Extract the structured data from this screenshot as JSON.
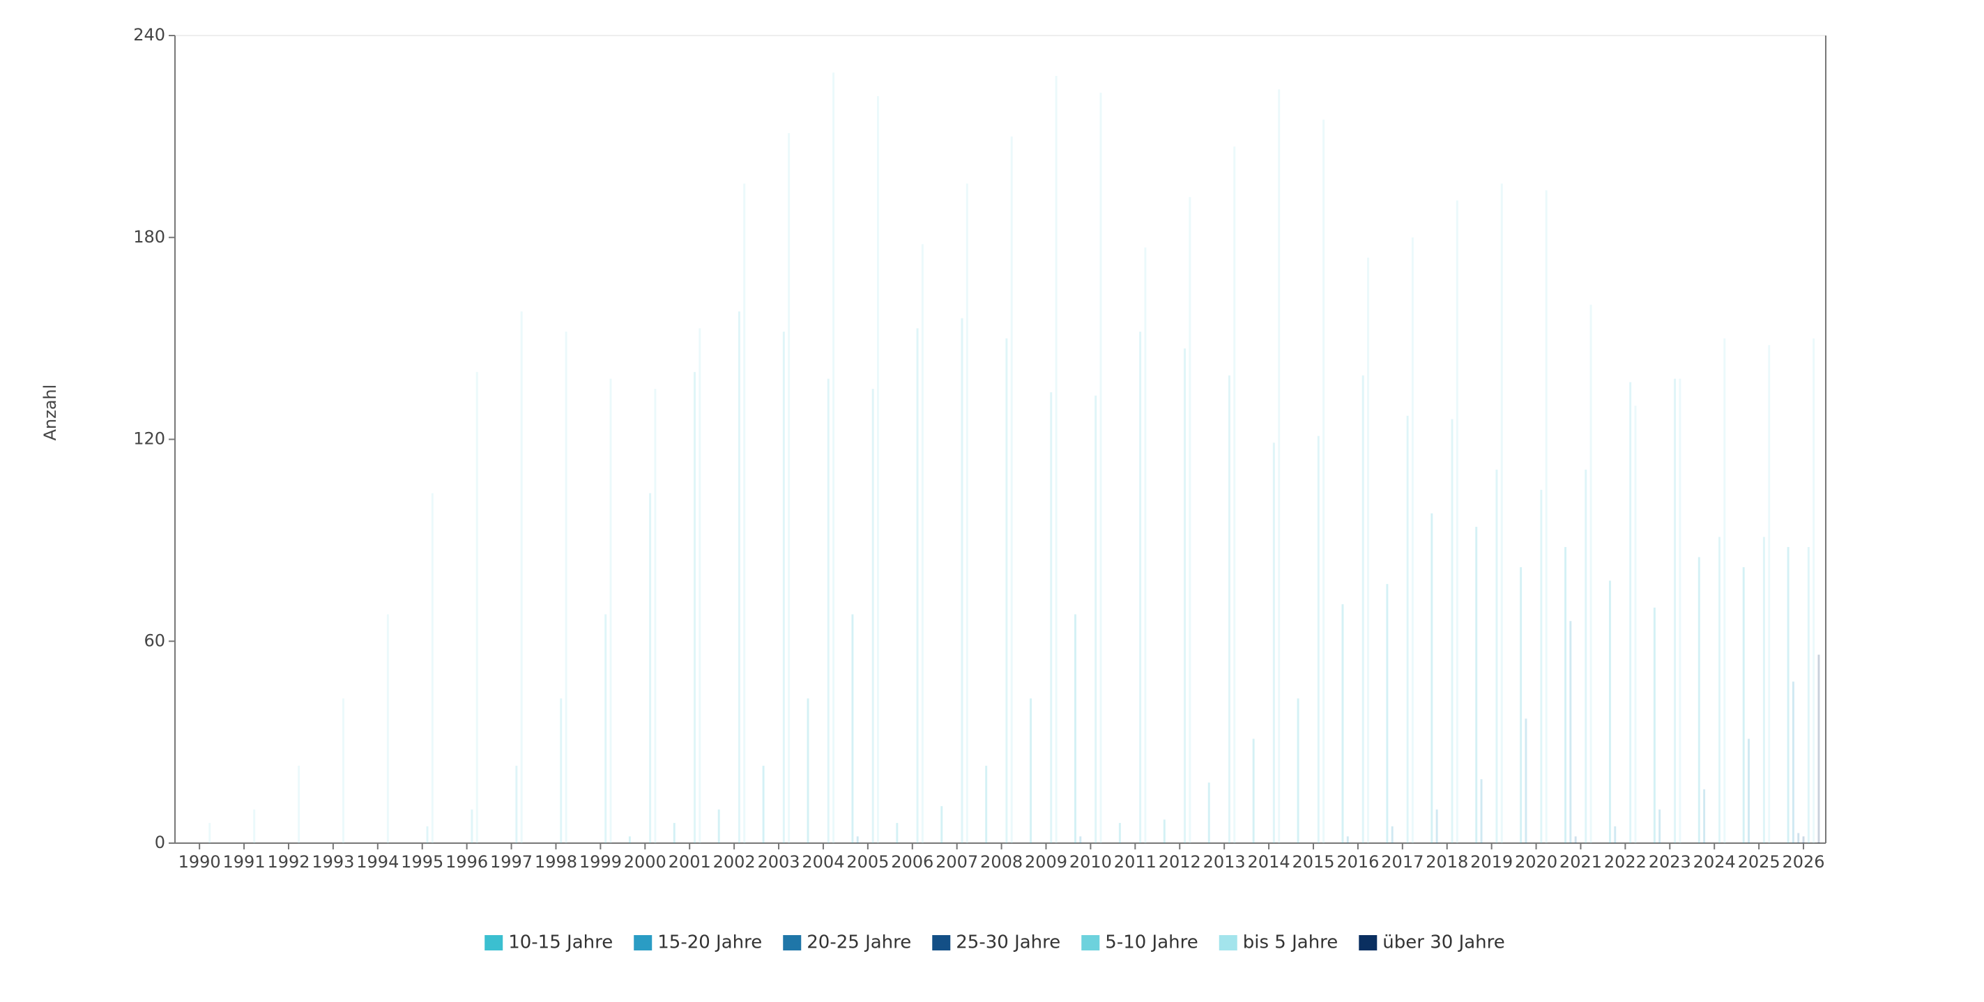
{
  "chart_data": {
    "type": "bar",
    "y_label": "Anzahl",
    "categories": [
      "1990",
      "1991",
      "1992",
      "1993",
      "1994",
      "1995",
      "1996",
      "1997",
      "1998",
      "1999",
      "2000",
      "2001",
      "2002",
      "2003",
      "2004",
      "2005",
      "2006",
      "2007",
      "2008",
      "2009",
      "2010",
      "2011",
      "2012",
      "2013",
      "2014",
      "2015",
      "2016",
      "2017",
      "2018",
      "2019",
      "2020",
      "2021",
      "2022",
      "2023",
      "2024",
      "2025",
      "2026"
    ],
    "series": [
      {
        "name": "10-15 Jahre",
        "color": "#3bbfd0",
        "values": [
          0,
          0,
          0,
          0,
          0,
          0,
          0,
          0,
          0,
          0,
          2,
          6,
          10,
          23,
          43,
          68,
          6,
          11,
          23,
          43,
          68,
          6,
          7,
          18,
          31,
          43,
          71,
          77,
          98,
          94,
          82,
          88,
          78,
          70,
          85,
          82,
          88
        ]
      },
      {
        "name": "15-20 Jahre",
        "color": "#2a9cc4",
        "values": [
          0,
          0,
          0,
          0,
          0,
          0,
          0,
          0,
          0,
          0,
          0,
          0,
          0,
          0,
          0,
          2,
          0,
          0,
          0,
          0,
          2,
          0,
          0,
          0,
          0,
          0,
          2,
          5,
          10,
          19,
          37,
          66,
          5,
          10,
          16,
          31,
          48
        ]
      },
      {
        "name": "20-25 Jahre",
        "color": "#1f76a8",
        "values": [
          0,
          0,
          0,
          0,
          0,
          0,
          0,
          0,
          0,
          0,
          0,
          0,
          0,
          0,
          0,
          0,
          0,
          0,
          0,
          0,
          0,
          0,
          0,
          0,
          0,
          0,
          0,
          0,
          0,
          0,
          0,
          2,
          0,
          0,
          0,
          0,
          3
        ]
      },
      {
        "name": "25-30 Jahre",
        "color": "#134f86",
        "values": [
          0,
          0,
          0,
          0,
          0,
          0,
          0,
          0,
          0,
          0,
          0,
          0,
          0,
          0,
          0,
          0,
          0,
          0,
          0,
          0,
          0,
          0,
          0,
          0,
          0,
          0,
          0,
          0,
          0,
          0,
          0,
          0,
          0,
          0,
          0,
          0,
          2
        ]
      },
      {
        "name": "5-10 Jahre",
        "color": "#6dd2dd",
        "values": [
          0,
          0,
          0,
          0,
          0,
          5,
          10,
          23,
          43,
          68,
          104,
          140,
          158,
          152,
          138,
          135,
          153,
          156,
          150,
          134,
          133,
          152,
          147,
          139,
          119,
          121,
          139,
          127,
          126,
          111,
          105,
          111,
          137,
          138,
          91,
          91,
          88
        ]
      },
      {
        "name": "bis 5 Jahre",
        "color": "#a3e4ec",
        "values": [
          6,
          10,
          23,
          43,
          68,
          104,
          140,
          158,
          152,
          138,
          135,
          153,
          196,
          211,
          229,
          222,
          178,
          196,
          210,
          228,
          223,
          177,
          192,
          207,
          224,
          215,
          174,
          180,
          191,
          196,
          194,
          160,
          130,
          138,
          150,
          148,
          150
        ]
      },
      {
        "name": "über 30 Jahre",
        "color": "#0a2f60",
        "values": [
          0,
          0,
          0,
          0,
          0,
          0,
          0,
          0,
          0,
          0,
          0,
          0,
          0,
          0,
          0,
          0,
          0,
          0,
          0,
          0,
          0,
          0,
          0,
          0,
          0,
          0,
          0,
          0,
          0,
          0,
          0,
          0,
          0,
          0,
          0,
          0,
          56
        ]
      }
    ],
    "ylim": [
      0,
      240
    ],
    "yticks": [
      0,
      60,
      120,
      180,
      240
    ],
    "legend": "bottom"
  }
}
